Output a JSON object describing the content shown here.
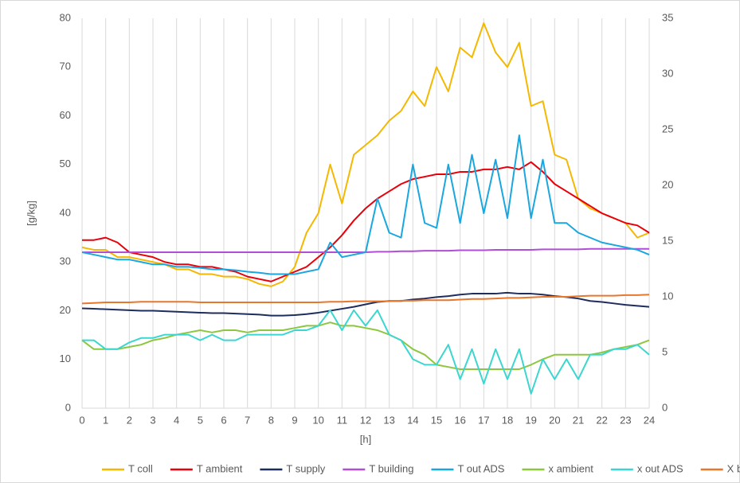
{
  "chart_data": {
    "type": "line",
    "xlabel": "[h]",
    "ylabel": "[g/kg]",
    "x": [
      0,
      0.5,
      1,
      1.5,
      2,
      2.5,
      3,
      3.5,
      4,
      4.5,
      5,
      5.5,
      6,
      6.5,
      7,
      7.5,
      8,
      8.5,
      9,
      9.5,
      10,
      10.5,
      11,
      11.5,
      12,
      12.5,
      13,
      13.5,
      14,
      14.5,
      15,
      15.5,
      16,
      16.5,
      17,
      17.5,
      18,
      18.5,
      19,
      19.5,
      20,
      20.5,
      21,
      21.5,
      22,
      22.5,
      23,
      23.5,
      24
    ],
    "xlim": [
      0,
      24
    ],
    "xticks": [
      0,
      1,
      2,
      3,
      4,
      5,
      6,
      7,
      8,
      9,
      10,
      11,
      12,
      13,
      14,
      15,
      16,
      17,
      18,
      19,
      20,
      21,
      22,
      23,
      24
    ],
    "ylim": [
      0,
      80
    ],
    "yticks": [
      0,
      10,
      20,
      30,
      40,
      50,
      60,
      70,
      80
    ],
    "y2lim": [
      0,
      35
    ],
    "y2ticks": [
      0,
      5,
      10,
      15,
      20,
      25,
      30,
      35
    ],
    "grid": "x",
    "legend": "bottom",
    "series": [
      {
        "name": "T coll",
        "color": "#f5b800",
        "values": [
          33,
          32.5,
          32.5,
          31,
          31,
          30.5,
          30,
          29.5,
          28.5,
          28.5,
          27.5,
          27.5,
          27,
          27,
          26.5,
          25.5,
          25,
          26,
          29,
          36,
          40,
          50,
          42,
          52,
          54,
          56,
          59,
          61,
          65,
          62,
          70,
          65,
          74,
          72,
          79,
          73,
          70,
          75,
          62,
          63,
          52,
          51,
          43,
          41,
          40,
          39,
          38,
          35,
          36
        ]
      },
      {
        "name": "T ambient",
        "color": "#e8000b",
        "values": [
          34.5,
          34.5,
          35,
          34,
          32,
          31.5,
          31,
          30,
          29.5,
          29.5,
          29,
          29,
          28.5,
          28,
          27,
          26.5,
          26,
          27,
          28,
          29,
          31,
          33,
          35.5,
          38.5,
          41,
          43,
          44.5,
          46,
          47,
          47.5,
          48,
          48,
          48.5,
          48.5,
          49,
          49,
          49.5,
          49,
          50.5,
          48.5,
          46,
          44.5,
          43,
          41.5,
          40,
          39,
          38,
          37.5,
          36
        ]
      },
      {
        "name": "T supply",
        "color": "#1f2d5c",
        "values": [
          20.5,
          20.4,
          20.3,
          20.2,
          20.1,
          20,
          20,
          19.9,
          19.8,
          19.7,
          19.6,
          19.5,
          19.5,
          19.4,
          19.3,
          19.2,
          19,
          19,
          19.1,
          19.3,
          19.6,
          20,
          20.4,
          20.8,
          21.3,
          21.8,
          22,
          22,
          22.3,
          22.5,
          22.8,
          23,
          23.3,
          23.5,
          23.5,
          23.5,
          23.7,
          23.5,
          23.5,
          23.3,
          23,
          22.8,
          22.5,
          22,
          21.8,
          21.5,
          21.2,
          21,
          20.8
        ]
      },
      {
        "name": "T building",
        "color": "#b04fd6",
        "values": [
          32,
          32,
          32,
          32,
          32,
          32,
          32,
          32,
          32,
          32,
          32,
          32,
          32,
          32,
          32,
          32,
          32,
          32,
          32,
          32,
          32,
          32,
          32,
          32,
          32,
          32.1,
          32.1,
          32.2,
          32.2,
          32.3,
          32.3,
          32.3,
          32.4,
          32.4,
          32.4,
          32.5,
          32.5,
          32.5,
          32.5,
          32.6,
          32.6,
          32.6,
          32.6,
          32.7,
          32.7,
          32.7,
          32.7,
          32.7,
          32.7
        ]
      },
      {
        "name": "T out ADS",
        "color": "#1aa7e0",
        "values": [
          32,
          31.5,
          31,
          30.5,
          30.5,
          30,
          29.5,
          29.5,
          29,
          29,
          28.8,
          28.5,
          28.5,
          28.3,
          28,
          27.8,
          27.5,
          27.5,
          27.5,
          28,
          28.5,
          34,
          31,
          31.5,
          32,
          43,
          36,
          35,
          50,
          38,
          37,
          50,
          38,
          52,
          40,
          51,
          39,
          56,
          39,
          51,
          38,
          38,
          36,
          35,
          34,
          33.5,
          33,
          32.5,
          31.5
        ]
      },
      {
        "name": "x ambient",
        "color": "#8dc63f",
        "axis": "y2",
        "values": [
          6.1,
          5.3,
          5.3,
          5.3,
          5.5,
          5.7,
          6.1,
          6.3,
          6.6,
          6.8,
          7,
          6.8,
          7,
          7,
          6.8,
          7,
          7,
          7,
          7.2,
          7.4,
          7.4,
          7.7,
          7.4,
          7.4,
          7.2,
          7,
          6.6,
          6.1,
          5.3,
          4.8,
          3.9,
          3.7,
          3.5,
          3.5,
          3.5,
          3.5,
          3.5,
          3.5,
          3.9,
          4.4,
          4.8,
          4.8,
          4.8,
          4.8,
          5,
          5.3,
          5.5,
          5.7,
          6.1
        ]
      },
      {
        "name": "x out ADS",
        "color": "#3cd6d0",
        "axis": "y2",
        "values": [
          6.1,
          6.1,
          5.3,
          5.3,
          5.9,
          6.3,
          6.3,
          6.6,
          6.6,
          6.6,
          6.1,
          6.6,
          6.1,
          6.1,
          6.6,
          6.6,
          6.6,
          6.6,
          7,
          7,
          7.4,
          8.8,
          7,
          8.8,
          7.4,
          8.8,
          6.6,
          6.1,
          4.4,
          3.9,
          3.9,
          5.7,
          2.6,
          5.3,
          2.2,
          5.3,
          2.6,
          5.3,
          1.3,
          4.4,
          2.6,
          4.4,
          2.6,
          4.8,
          4.8,
          5.3,
          5.3,
          5.7,
          4.8
        ]
      },
      {
        "name": "X building",
        "color": "#e8772e",
        "axis": "y2",
        "values": [
          9.4,
          9.45,
          9.5,
          9.5,
          9.5,
          9.55,
          9.55,
          9.55,
          9.55,
          9.55,
          9.5,
          9.5,
          9.5,
          9.5,
          9.5,
          9.5,
          9.5,
          9.5,
          9.5,
          9.5,
          9.5,
          9.55,
          9.55,
          9.6,
          9.6,
          9.6,
          9.6,
          9.65,
          9.65,
          9.7,
          9.7,
          9.7,
          9.75,
          9.8,
          9.8,
          9.85,
          9.9,
          9.9,
          9.95,
          10,
          10,
          10,
          10.05,
          10.1,
          10.1,
          10.1,
          10.15,
          10.15,
          10.2
        ]
      }
    ]
  }
}
